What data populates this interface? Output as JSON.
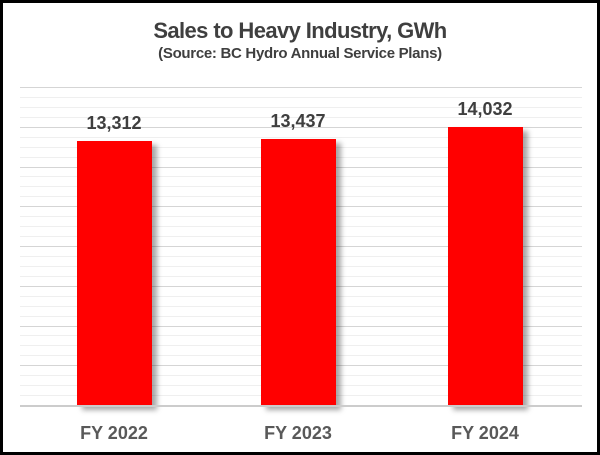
{
  "chart_data": {
    "type": "bar",
    "title": "Sales to Heavy Industry, GWh",
    "subtitle": "(Source: BC Hydro Annual Service Plans)",
    "categories": [
      "FY 2022",
      "FY 2023",
      "FY 2024"
    ],
    "values": [
      13312,
      13437,
      14032
    ],
    "value_labels": [
      "13,312",
      "13,437",
      "14,032"
    ],
    "xlabel": "",
    "ylabel": "",
    "ylim": [
      0,
      16000
    ],
    "gridlines": {
      "major_interval": 2000,
      "minor_interval": 500,
      "major_color": "#d5d5d5",
      "minor_color": "#efefef"
    },
    "legend": "none",
    "y_axis_labels_visible": false,
    "colors": {
      "bar": "#ff0000",
      "title_text": "#3f3f3f",
      "subtitle_text": "#3f3f3f",
      "value_label_text": "#3f3f3f",
      "category_label_text": "#595959",
      "axis_line": "#cccccc",
      "frame_border": "#000000",
      "background": "#ffffff"
    }
  }
}
